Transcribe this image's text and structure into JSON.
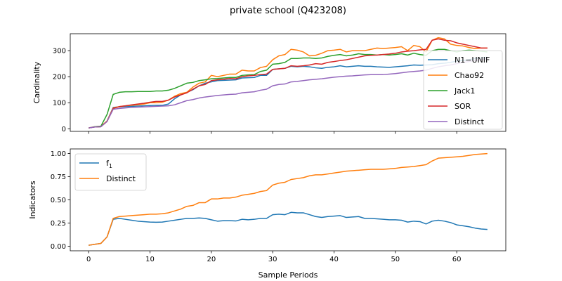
{
  "title": "private school (Q423208)",
  "colors": {
    "blue": "#1f77b4",
    "orange": "#ff7f0e",
    "green": "#2ca02c",
    "red": "#d62728",
    "purple": "#9467bd"
  },
  "chart_data": [
    {
      "type": "line",
      "xlabel": "",
      "ylabel": "Cardinality",
      "xlim": [
        -3,
        68
      ],
      "ylim": [
        -10,
        365
      ],
      "xticks": [
        0,
        10,
        20,
        30,
        40,
        50,
        60
      ],
      "yticks": [
        0,
        100,
        200,
        300
      ],
      "x_tick_labels_visible": false,
      "legend_position": "right",
      "x": [
        0,
        1,
        2,
        3,
        4,
        5,
        6,
        7,
        8,
        9,
        10,
        11,
        12,
        13,
        14,
        15,
        16,
        17,
        18,
        19,
        20,
        21,
        22,
        23,
        24,
        25,
        26,
        27,
        28,
        29,
        30,
        31,
        32,
        33,
        34,
        35,
        36,
        37,
        38,
        39,
        40,
        41,
        42,
        43,
        44,
        45,
        46,
        47,
        48,
        49,
        50,
        51,
        52,
        53,
        54,
        55,
        56,
        57,
        58,
        59,
        60,
        61,
        62,
        63,
        64,
        65
      ],
      "series": [
        {
          "name": "N1−UNIF",
          "color": "#1f77b4",
          "values": [
            3,
            7,
            8,
            30,
            82,
            84,
            85,
            86,
            87,
            88,
            89,
            90,
            90,
            95,
            115,
            130,
            140,
            150,
            165,
            175,
            180,
            185,
            186,
            187,
            188,
            195,
            196,
            197,
            205,
            205,
            228,
            230,
            232,
            240,
            238,
            240,
            238,
            234,
            232,
            236,
            238,
            242,
            238,
            240,
            242,
            240,
            240,
            238,
            237,
            236,
            238,
            240,
            242,
            245,
            244,
            245,
            246,
            250,
            252,
            255,
            260,
            262,
            265,
            270,
            272,
            275
          ]
        },
        {
          "name": "Chao92",
          "color": "#ff7f0e",
          "values": [
            3,
            8,
            10,
            30,
            80,
            85,
            88,
            90,
            92,
            95,
            100,
            100,
            102,
            110,
            125,
            135,
            140,
            160,
            175,
            180,
            205,
            200,
            205,
            210,
            210,
            225,
            222,
            222,
            235,
            240,
            265,
            280,
            285,
            305,
            302,
            295,
            280,
            282,
            290,
            300,
            302,
            305,
            295,
            300,
            300,
            300,
            305,
            310,
            308,
            310,
            312,
            315,
            300,
            320,
            315,
            295,
            340,
            350,
            345,
            325,
            320,
            318,
            312,
            308,
            310,
            310
          ]
        },
        {
          "name": "Jack1",
          "color": "#2ca02c",
          "values": [
            3,
            8,
            10,
            55,
            132,
            140,
            142,
            142,
            143,
            143,
            143,
            145,
            145,
            148,
            155,
            165,
            175,
            178,
            185,
            188,
            192,
            193,
            195,
            197,
            197,
            205,
            207,
            208,
            220,
            225,
            248,
            250,
            255,
            270,
            270,
            272,
            272,
            270,
            272,
            278,
            282,
            285,
            280,
            283,
            288,
            285,
            285,
            283,
            285,
            283,
            285,
            288,
            283,
            290,
            285,
            282,
            300,
            305,
            305,
            300,
            295,
            300,
            302,
            300,
            298,
            295
          ]
        },
        {
          "name": "SOR",
          "color": "#d62728",
          "values": [
            3,
            7,
            8,
            28,
            78,
            85,
            88,
            92,
            95,
            98,
            102,
            105,
            105,
            110,
            122,
            130,
            138,
            152,
            165,
            170,
            185,
            188,
            190,
            193,
            192,
            200,
            203,
            205,
            208,
            210,
            228,
            230,
            232,
            242,
            240,
            242,
            245,
            250,
            248,
            255,
            258,
            262,
            265,
            270,
            275,
            280,
            282,
            283,
            285,
            287,
            290,
            295,
            298,
            300,
            303,
            305,
            340,
            345,
            340,
            338,
            330,
            325,
            320,
            315,
            310,
            310
          ]
        },
        {
          "name": "Distinct",
          "color": "#9467bd",
          "values": [
            3,
            7,
            8,
            28,
            75,
            78,
            80,
            82,
            83,
            84,
            85,
            86,
            87,
            88,
            92,
            100,
            108,
            112,
            118,
            122,
            125,
            128,
            130,
            132,
            133,
            138,
            140,
            142,
            148,
            152,
            165,
            170,
            172,
            180,
            182,
            185,
            188,
            190,
            192,
            195,
            198,
            200,
            202,
            203,
            205,
            207,
            208,
            208,
            208,
            210,
            212,
            215,
            218,
            220,
            222,
            225,
            232,
            238,
            242,
            245,
            250,
            255,
            258,
            262,
            265,
            270
          ]
        }
      ]
    },
    {
      "type": "line",
      "xlabel": "Sample Periods",
      "ylabel": "Indicators",
      "xlim": [
        -3,
        68
      ],
      "ylim": [
        -0.05,
        1.05
      ],
      "xticks": [
        0,
        10,
        20,
        30,
        40,
        50,
        60
      ],
      "yticks": [
        0.0,
        0.25,
        0.5,
        0.75,
        1.0
      ],
      "ytick_labels": [
        "0.00",
        "0.25",
        "0.50",
        "0.75",
        "1.00"
      ],
      "legend_position": "top-left",
      "x": [
        0,
        1,
        2,
        3,
        4,
        5,
        6,
        7,
        8,
        9,
        10,
        11,
        12,
        13,
        14,
        15,
        16,
        17,
        18,
        19,
        20,
        21,
        22,
        23,
        24,
        25,
        26,
        27,
        28,
        29,
        30,
        31,
        32,
        33,
        34,
        35,
        36,
        37,
        38,
        39,
        40,
        41,
        42,
        43,
        44,
        45,
        46,
        47,
        48,
        49,
        50,
        51,
        52,
        53,
        54,
        55,
        56,
        57,
        58,
        59,
        60,
        61,
        62,
        63,
        64,
        65
      ],
      "series": [
        {
          "name": "f₁",
          "name_main": "f",
          "name_sub": "1",
          "color": "#1f77b4",
          "values": [
            0.01,
            0.02,
            0.03,
            0.1,
            0.29,
            0.3,
            0.29,
            0.28,
            0.27,
            0.265,
            0.26,
            0.258,
            0.26,
            0.27,
            0.28,
            0.29,
            0.3,
            0.3,
            0.305,
            0.3,
            0.285,
            0.27,
            0.275,
            0.275,
            0.272,
            0.29,
            0.285,
            0.29,
            0.3,
            0.3,
            0.34,
            0.345,
            0.34,
            0.365,
            0.36,
            0.36,
            0.34,
            0.32,
            0.31,
            0.32,
            0.325,
            0.33,
            0.31,
            0.315,
            0.32,
            0.3,
            0.3,
            0.295,
            0.29,
            0.285,
            0.285,
            0.28,
            0.26,
            0.27,
            0.265,
            0.24,
            0.27,
            0.28,
            0.27,
            0.255,
            0.23,
            0.22,
            0.21,
            0.195,
            0.185,
            0.18
          ]
        },
        {
          "name": "Distinct",
          "color": "#ff7f0e",
          "values": [
            0.01,
            0.02,
            0.03,
            0.1,
            0.3,
            0.32,
            0.325,
            0.33,
            0.335,
            0.34,
            0.345,
            0.345,
            0.35,
            0.36,
            0.38,
            0.4,
            0.43,
            0.44,
            0.47,
            0.47,
            0.51,
            0.51,
            0.52,
            0.52,
            0.53,
            0.55,
            0.56,
            0.57,
            0.59,
            0.6,
            0.66,
            0.68,
            0.69,
            0.72,
            0.73,
            0.74,
            0.76,
            0.77,
            0.77,
            0.78,
            0.79,
            0.8,
            0.81,
            0.815,
            0.82,
            0.825,
            0.83,
            0.83,
            0.83,
            0.835,
            0.84,
            0.85,
            0.855,
            0.86,
            0.87,
            0.88,
            0.92,
            0.95,
            0.955,
            0.96,
            0.965,
            0.97,
            0.98,
            0.99,
            0.995,
            1.0
          ]
        }
      ]
    }
  ]
}
